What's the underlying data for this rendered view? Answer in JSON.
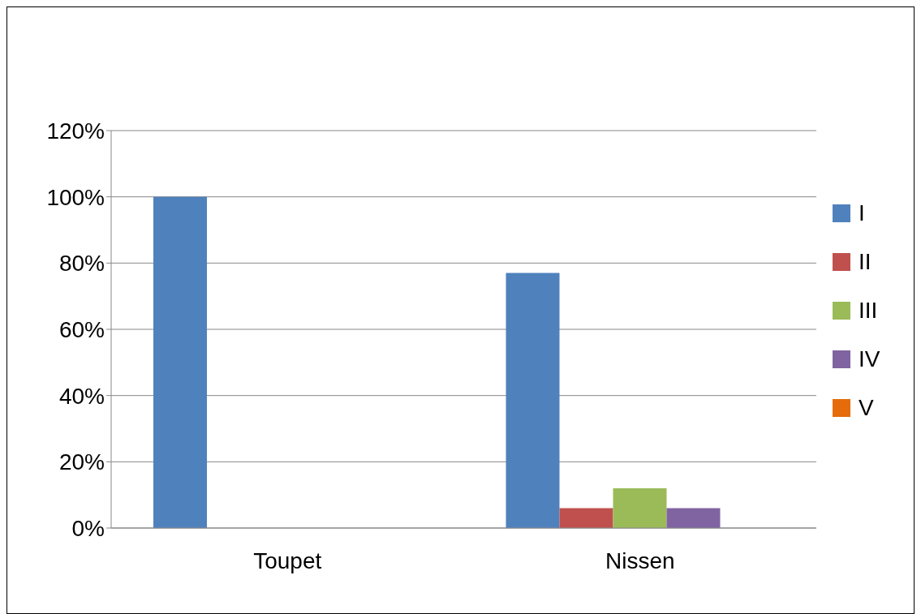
{
  "chart_data": {
    "type": "bar",
    "categories": [
      "Toupet",
      "Nissen"
    ],
    "series": [
      {
        "name": "I",
        "color": "#4f81bd",
        "values": [
          100,
          77
        ]
      },
      {
        "name": "II",
        "color": "#c0504d",
        "values": [
          0,
          6
        ]
      },
      {
        "name": "III",
        "color": "#9bbb59",
        "values": [
          0,
          12
        ]
      },
      {
        "name": "IV",
        "color": "#8064a2",
        "values": [
          0,
          6
        ]
      },
      {
        "name": "V",
        "color": "#e46c0a",
        "values": [
          0,
          0
        ]
      }
    ],
    "ylim": [
      0,
      120
    ],
    "yticks": [
      {
        "value": 0,
        "label": "0%"
      },
      {
        "value": 20,
        "label": "20%"
      },
      {
        "value": 40,
        "label": "40%"
      },
      {
        "value": 60,
        "label": "60%"
      },
      {
        "value": 80,
        "label": "80%"
      },
      {
        "value": 100,
        "label": "100%"
      },
      {
        "value": 120,
        "label": "120%"
      }
    ],
    "grid": "y",
    "legend": "right"
  }
}
